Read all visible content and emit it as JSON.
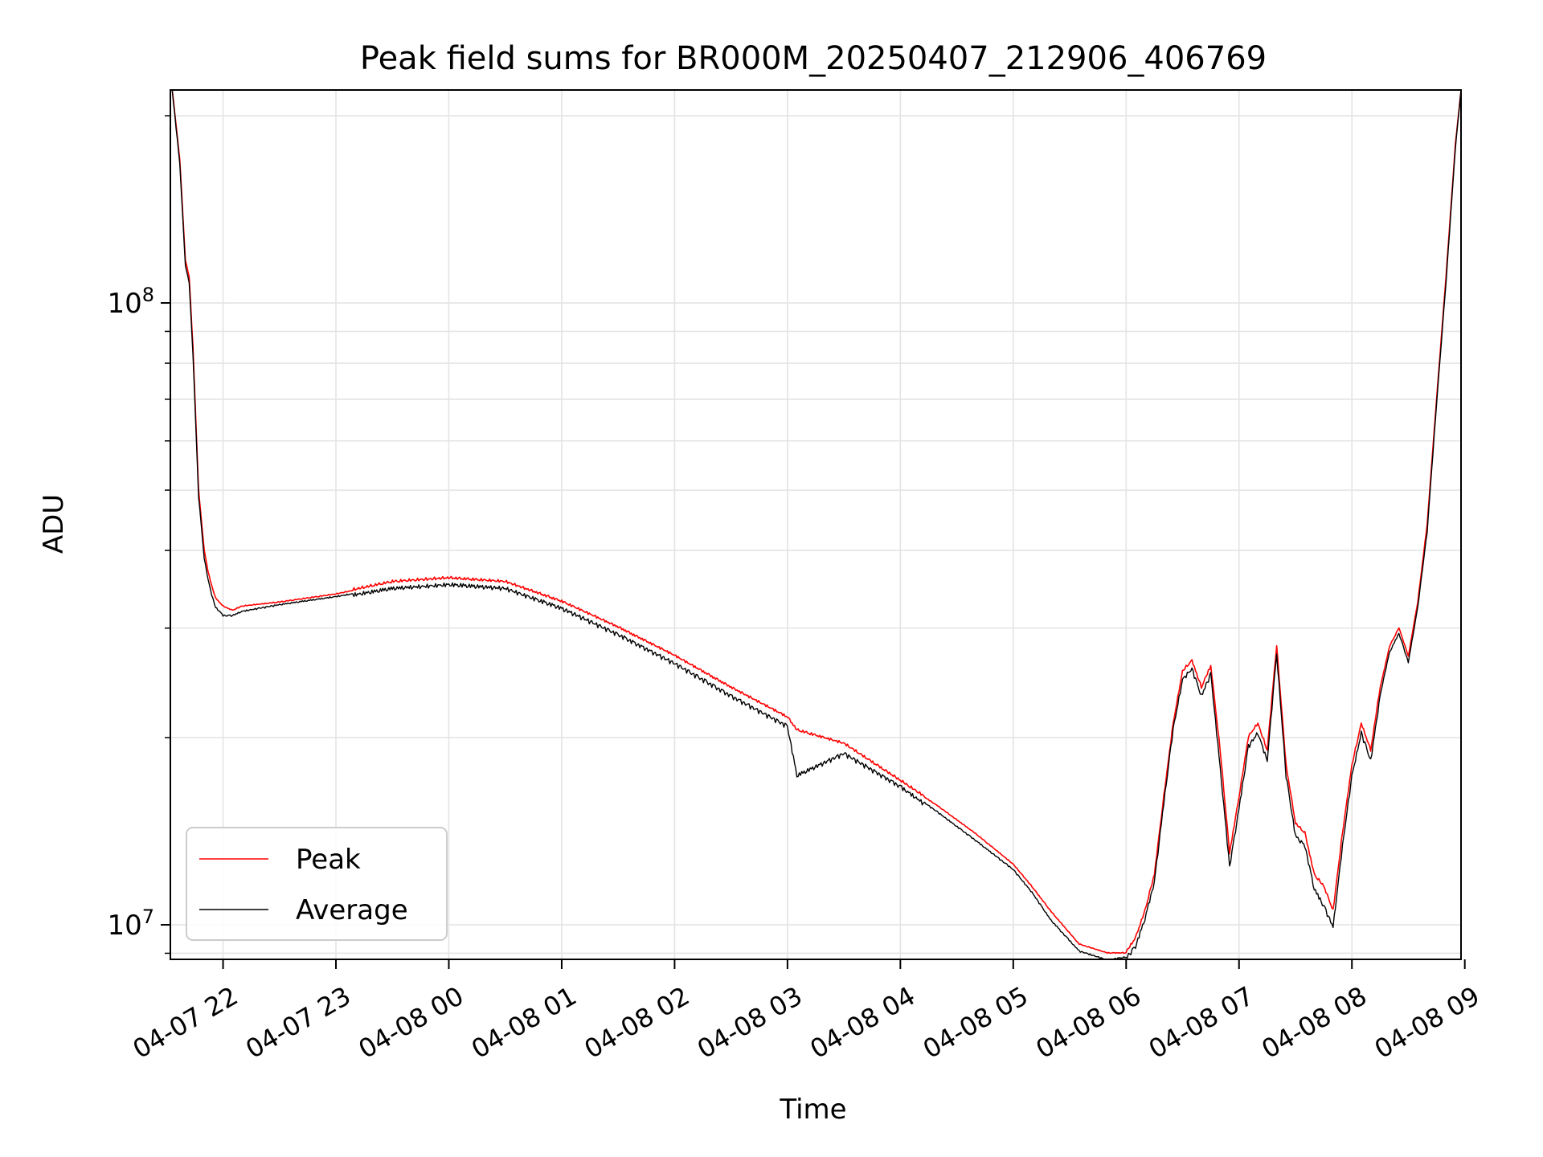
{
  "chart_data": {
    "type": "line",
    "title": "Peak field sums for BR000M_20250407_212906_406769",
    "xlabel": "Time",
    "ylabel": "ADU",
    "y_scale": "log",
    "ylim": [
      8800000,
      220000000
    ],
    "xlim": [
      "2025-04-07 21:32",
      "2025-04-08 08:58"
    ],
    "grid": true,
    "legend_position": "lower-left",
    "x_ticks": [
      {
        "t": "2025-04-07 22:00",
        "label": "04-07 22"
      },
      {
        "t": "2025-04-07 23:00",
        "label": "04-07 23"
      },
      {
        "t": "2025-04-08 00:00",
        "label": "04-08 00"
      },
      {
        "t": "2025-04-08 01:00",
        "label": "04-08 01"
      },
      {
        "t": "2025-04-08 02:00",
        "label": "04-08 02"
      },
      {
        "t": "2025-04-08 03:00",
        "label": "04-08 03"
      },
      {
        "t": "2025-04-08 04:00",
        "label": "04-08 04"
      },
      {
        "t": "2025-04-08 05:00",
        "label": "04-08 05"
      },
      {
        "t": "2025-04-08 06:00",
        "label": "04-08 06"
      },
      {
        "t": "2025-04-08 07:00",
        "label": "04-08 07"
      },
      {
        "t": "2025-04-08 08:00",
        "label": "04-08 08"
      },
      {
        "t": "2025-04-08 09:00",
        "label": "04-08 09"
      }
    ],
    "y_ticks": [
      {
        "value": 10000000,
        "base": "10",
        "exp": "7"
      },
      {
        "value": 100000000,
        "base": "10",
        "exp": "8"
      }
    ],
    "series": [
      {
        "name": "Peak",
        "color": "#ff0000",
        "x": [
          "2025-04-07 21:33",
          "2025-04-07 21:37",
          "2025-04-07 21:40",
          "2025-04-07 21:42",
          "2025-04-07 21:44",
          "2025-04-07 21:47",
          "2025-04-07 21:50",
          "2025-04-07 21:52",
          "2025-04-07 21:54",
          "2025-04-07 21:56",
          "2025-04-07 22:00",
          "2025-04-07 22:05",
          "2025-04-07 22:10",
          "2025-04-07 22:30",
          "2025-04-07 23:00",
          "2025-04-07 23:30",
          "2025-04-08 00:00",
          "2025-04-08 00:30",
          "2025-04-08 01:00",
          "2025-04-08 01:30",
          "2025-04-08 02:00",
          "2025-04-08 02:30",
          "2025-04-08 03:00",
          "2025-04-08 03:05",
          "2025-04-08 03:30",
          "2025-04-08 04:00",
          "2025-04-08 04:20",
          "2025-04-08 04:40",
          "2025-04-08 05:00",
          "2025-04-08 05:10",
          "2025-04-08 05:20",
          "2025-04-08 05:35",
          "2025-04-08 05:50",
          "2025-04-08 06:00",
          "2025-04-08 06:05",
          "2025-04-08 06:10",
          "2025-04-08 06:15",
          "2025-04-08 06:20",
          "2025-04-08 06:25",
          "2025-04-08 06:30",
          "2025-04-08 06:35",
          "2025-04-08 06:40",
          "2025-04-08 06:45",
          "2025-04-08 06:50",
          "2025-04-08 06:55",
          "2025-04-08 07:00",
          "2025-04-08 07:05",
          "2025-04-08 07:10",
          "2025-04-08 07:15",
          "2025-04-08 07:20",
          "2025-04-08 07:25",
          "2025-04-08 07:30",
          "2025-04-08 07:35",
          "2025-04-08 07:40",
          "2025-04-08 07:45",
          "2025-04-08 07:50",
          "2025-04-08 07:55",
          "2025-04-08 08:00",
          "2025-04-08 08:05",
          "2025-04-08 08:10",
          "2025-04-08 08:15",
          "2025-04-08 08:20",
          "2025-04-08 08:25",
          "2025-04-08 08:30",
          "2025-04-08 08:35",
          "2025-04-08 08:40",
          "2025-04-08 08:45",
          "2025-04-08 08:50",
          "2025-04-08 08:55",
          "2025-04-08 08:58"
        ],
        "values": [
          220000000,
          170000000,
          117000000,
          110000000,
          85000000,
          50000000,
          40000000,
          37000000,
          35000000,
          33500000,
          32500000,
          32000000,
          32500000,
          33000000,
          34000000,
          35500000,
          36000000,
          35500000,
          33000000,
          30000000,
          27000000,
          24000000,
          21500000,
          20500000,
          19500000,
          17000000,
          15500000,
          14000000,
          12500000,
          11500000,
          10500000,
          9300000,
          9000000,
          9000000,
          9500000,
          10500000,
          12000000,
          16000000,
          21000000,
          25500000,
          26500000,
          24000000,
          26000000,
          19000000,
          13000000,
          16000000,
          20000000,
          21000000,
          19000000,
          28000000,
          18000000,
          14500000,
          14000000,
          12000000,
          11500000,
          10500000,
          14000000,
          18000000,
          21000000,
          19000000,
          24000000,
          28000000,
          30000000,
          27000000,
          33000000,
          44000000,
          70000000,
          110000000,
          180000000,
          220000000
        ]
      },
      {
        "name": "Average",
        "color": "#000000",
        "x": [
          "2025-04-07 21:33",
          "2025-04-07 21:37",
          "2025-04-07 21:40",
          "2025-04-07 21:42",
          "2025-04-07 21:44",
          "2025-04-07 21:47",
          "2025-04-07 21:50",
          "2025-04-07 21:52",
          "2025-04-07 21:54",
          "2025-04-07 21:56",
          "2025-04-07 22:00",
          "2025-04-07 22:05",
          "2025-04-07 22:10",
          "2025-04-07 22:30",
          "2025-04-07 23:00",
          "2025-04-07 23:30",
          "2025-04-08 00:00",
          "2025-04-08 00:30",
          "2025-04-08 01:00",
          "2025-04-08 01:30",
          "2025-04-08 02:00",
          "2025-04-08 02:30",
          "2025-04-08 03:00",
          "2025-04-08 03:05",
          "2025-04-08 03:30",
          "2025-04-08 04:00",
          "2025-04-08 04:20",
          "2025-04-08 04:40",
          "2025-04-08 05:00",
          "2025-04-08 05:10",
          "2025-04-08 05:20",
          "2025-04-08 05:35",
          "2025-04-08 05:50",
          "2025-04-08 06:00",
          "2025-04-08 06:05",
          "2025-04-08 06:10",
          "2025-04-08 06:15",
          "2025-04-08 06:20",
          "2025-04-08 06:25",
          "2025-04-08 06:30",
          "2025-04-08 06:35",
          "2025-04-08 06:40",
          "2025-04-08 06:45",
          "2025-04-08 06:50",
          "2025-04-08 06:55",
          "2025-04-08 07:00",
          "2025-04-08 07:05",
          "2025-04-08 07:10",
          "2025-04-08 07:15",
          "2025-04-08 07:20",
          "2025-04-08 07:25",
          "2025-04-08 07:30",
          "2025-04-08 07:35",
          "2025-04-08 07:40",
          "2025-04-08 07:45",
          "2025-04-08 07:50",
          "2025-04-08 07:55",
          "2025-04-08 08:00",
          "2025-04-08 08:05",
          "2025-04-08 08:10",
          "2025-04-08 08:15",
          "2025-04-08 08:20",
          "2025-04-08 08:25",
          "2025-04-08 08:30",
          "2025-04-08 08:35",
          "2025-04-08 08:40",
          "2025-04-08 08:45",
          "2025-04-08 08:50",
          "2025-04-08 08:55",
          "2025-04-08 08:58"
        ],
        "values": [
          220000000,
          168000000,
          115000000,
          108000000,
          83000000,
          49000000,
          39000000,
          36000000,
          34000000,
          32500000,
          31500000,
          31500000,
          32000000,
          32800000,
          33800000,
          35000000,
          35500000,
          35000000,
          32500000,
          29500000,
          26500000,
          23500000,
          21000000,
          17500000,
          19000000,
          16800000,
          15200000,
          13700000,
          12300000,
          11300000,
          10200000,
          9100000,
          8800000,
          8900000,
          9300000,
          10300000,
          11800000,
          15800000,
          20800000,
          25000000,
          26000000,
          23500000,
          25500000,
          18000000,
          12500000,
          15500000,
          19500000,
          20500000,
          18500000,
          27500000,
          17500000,
          14000000,
          13500000,
          11500000,
          10800000,
          10000000,
          13500000,
          17500000,
          20500000,
          18500000,
          23500000,
          27500000,
          29500000,
          26500000,
          32500000,
          43000000,
          69000000,
          108000000,
          178000000,
          220000000
        ]
      }
    ]
  }
}
